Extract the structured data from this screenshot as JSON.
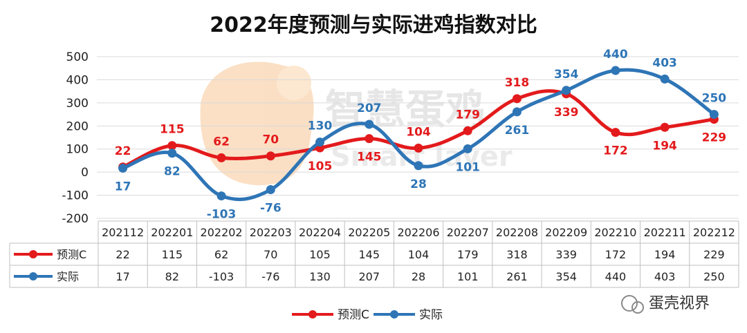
{
  "chart_data": {
    "type": "line",
    "title": "2022年度预测与实际进鸡指数对比",
    "categories": [
      "202112",
      "202201",
      "202202",
      "202203",
      "202204",
      "202205",
      "202206",
      "202207",
      "202208",
      "202209",
      "202210",
      "202211",
      "202212"
    ],
    "ylim": [
      -200,
      500
    ],
    "yticks": [
      500,
      400,
      300,
      200,
      100,
      0,
      -100,
      -200
    ],
    "grid": true,
    "legend_position": "bottom",
    "series": [
      {
        "name": "预测C",
        "color": "#e31a1c",
        "values": [
          22,
          115,
          62,
          70,
          105,
          145,
          104,
          179,
          318,
          339,
          172,
          194,
          229
        ]
      },
      {
        "name": "实际",
        "color": "#2e75b6",
        "values": [
          17,
          82,
          -103,
          -76,
          130,
          207,
          28,
          101,
          261,
          354,
          440,
          403,
          250
        ]
      }
    ]
  },
  "watermark": {
    "cn": "智慧蛋鸡",
    "en": "Smart layer",
    "badge": "蛋壳视界"
  }
}
